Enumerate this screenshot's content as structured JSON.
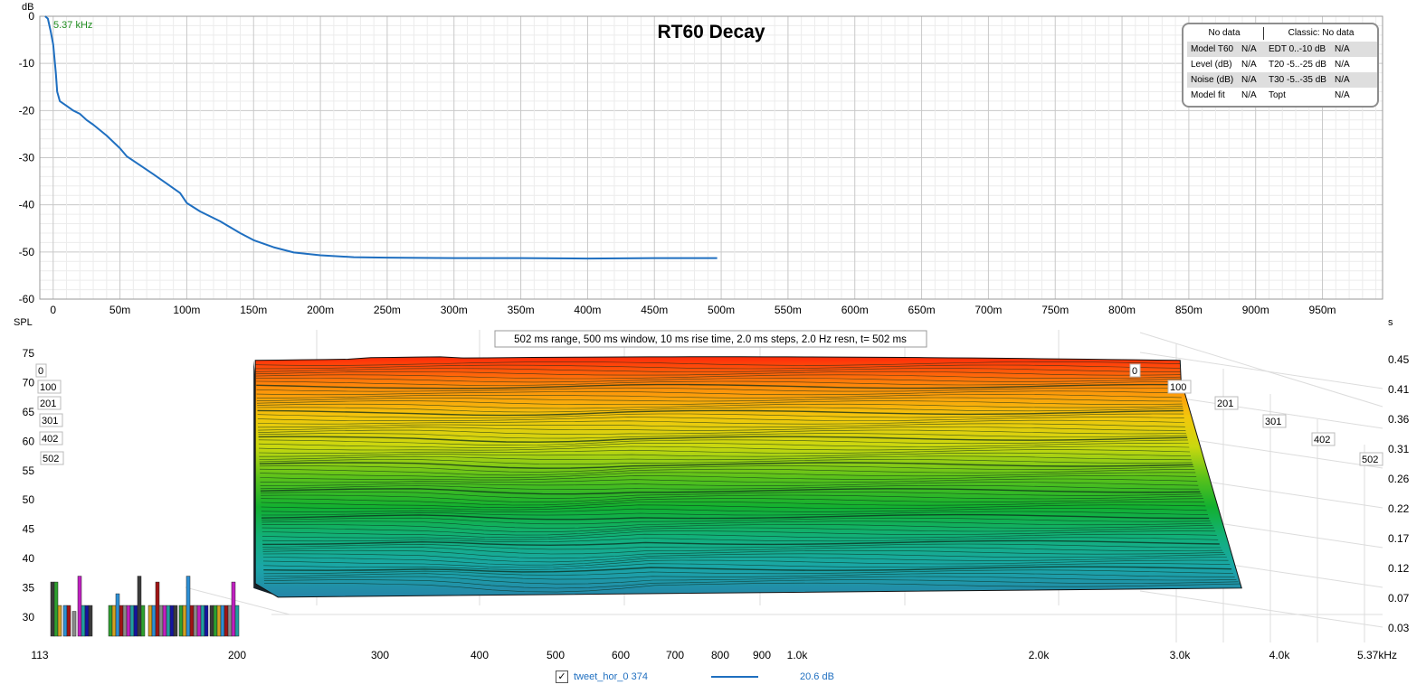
{
  "chart_data": [
    {
      "type": "line",
      "title": "RT60 Decay",
      "frequency_marker": "5.37 kHz",
      "ylabel": "dB",
      "ylim": [
        -60,
        0
      ],
      "yticks": [
        0,
        -10,
        -20,
        -30,
        -40,
        -50,
        -60
      ],
      "xlim": [
        -0.01,
        0.995
      ],
      "xticks": [
        {
          "v": 0,
          "label": "0"
        },
        {
          "v": 0.05,
          "label": "50m"
        },
        {
          "v": 0.1,
          "label": "100m"
        },
        {
          "v": 0.15,
          "label": "150m"
        },
        {
          "v": 0.2,
          "label": "200m"
        },
        {
          "v": 0.25,
          "label": "250m"
        },
        {
          "v": 0.3,
          "label": "300m"
        },
        {
          "v": 0.35,
          "label": "350m"
        },
        {
          "v": 0.4,
          "label": "400m"
        },
        {
          "v": 0.45,
          "label": "450m"
        },
        {
          "v": 0.5,
          "label": "500m"
        },
        {
          "v": 0.55,
          "label": "550m"
        },
        {
          "v": 0.6,
          "label": "600m"
        },
        {
          "v": 0.65,
          "label": "650m"
        },
        {
          "v": 0.7,
          "label": "700m"
        },
        {
          "v": 0.75,
          "label": "750m"
        },
        {
          "v": 0.8,
          "label": "800m"
        },
        {
          "v": 0.85,
          "label": "850m"
        },
        {
          "v": 0.9,
          "label": "900m"
        },
        {
          "v": 0.95,
          "label": "950m"
        }
      ],
      "grid": true,
      "series": [
        {
          "name": "tweet_hor_0 374",
          "color": "#1f6fc0",
          "x": [
            -0.006,
            -0.004,
            -0.002,
            0,
            0.002,
            0.003,
            0.005,
            0.01,
            0.015,
            0.02,
            0.025,
            0.03,
            0.04,
            0.05,
            0.055,
            0.065,
            0.075,
            0.085,
            0.095,
            0.1,
            0.11,
            0.125,
            0.14,
            0.15,
            0.165,
            0.18,
            0.2,
            0.225,
            0.25,
            0.3,
            0.35,
            0.4,
            0.45,
            0.497
          ],
          "y": [
            0,
            -0.5,
            -3,
            -6,
            -12,
            -16,
            -18,
            -19,
            -20,
            -20.7,
            -22,
            -23,
            -25.3,
            -28,
            -29.7,
            -31.6,
            -33.5,
            -35.5,
            -37.5,
            -39.6,
            -41.4,
            -43.5,
            -46,
            -47.5,
            -49,
            -50.1,
            -50.7,
            -51.1,
            -51.2,
            -51.3,
            -51.3,
            -51.4,
            -51.3,
            -51.3
          ]
        }
      ],
      "stats_table": {
        "header_left": "No data",
        "header_right": "Classic: No data",
        "rows": [
          {
            "name": "Model T60",
            "value": "N/A",
            "cname": "EDT  0..-10 dB",
            "cvalue": "N/A"
          },
          {
            "name": "Level (dB)",
            "value": "N/A",
            "cname": "T20 -5..-25 dB",
            "cvalue": "N/A"
          },
          {
            "name": "Noise (dB)",
            "value": "N/A",
            "cname": "T30 -5..-35 dB",
            "cvalue": "N/A"
          },
          {
            "name": "Model fit",
            "value": "N/A",
            "cname": "Topt",
            "cvalue": "N/A"
          }
        ]
      }
    },
    {
      "type": "area",
      "subtype": "waterfall",
      "info": "502 ms range, 500 ms window, 10 ms rise time, 2.0 ms steps,  2.0 Hz resn, t= 502 ms",
      "ylabel": "SPL",
      "ylabel_right": "s",
      "ylim": [
        28,
        77
      ],
      "yticks": [
        75,
        70,
        65,
        60,
        55,
        50,
        45,
        40,
        35,
        30
      ],
      "yticks_right": [
        "0.45",
        "0.41",
        "0.36",
        "0.31",
        "0.26",
        "0.22",
        "0.17",
        "0.12",
        "0.07",
        "0.03"
      ],
      "xscale": "log",
      "xlim": [
        113,
        5370
      ],
      "xticks": [
        {
          "v": 113,
          "label": "113"
        },
        {
          "v": 200,
          "label": "200"
        },
        {
          "v": 300,
          "label": "300"
        },
        {
          "v": 400,
          "label": "400"
        },
        {
          "v": 500,
          "label": "500"
        },
        {
          "v": 600,
          "label": "600"
        },
        {
          "v": 700,
          "label": "700"
        },
        {
          "v": 800,
          "label": "800"
        },
        {
          "v": 900,
          "label": "900"
        },
        {
          "v": 1000,
          "label": "1.0k"
        },
        {
          "v": 2000,
          "label": "2.0k"
        },
        {
          "v": 3000,
          "label": "3.0k"
        },
        {
          "v": 4000,
          "label": "4.0k"
        },
        {
          "v": 5370,
          "label": "5.37kHz"
        }
      ],
      "time_labels_left": [
        "0",
        "100",
        "201",
        "301",
        "402",
        "502"
      ],
      "time_labels_right": [
        "0",
        "100",
        "201",
        "301",
        "402",
        "502"
      ],
      "slice_count": 252,
      "front_slice_freq_start": 210,
      "front_slice_freq_end": 3000,
      "front_slice_level_db": 73.8,
      "rear_slice_level_db": 34.5,
      "colormap": [
        "#2585a8",
        "#1aa6a8",
        "#12b07a",
        "#12b030",
        "#5cc21a",
        "#c9d80f",
        "#f3c70c",
        "#ff8c0a",
        "#ff2a0a"
      ]
    }
  ],
  "legend": {
    "checked": true,
    "name": "tweet_hor_0 374",
    "value": "20.6 dB",
    "color": "#1f6fc0"
  }
}
